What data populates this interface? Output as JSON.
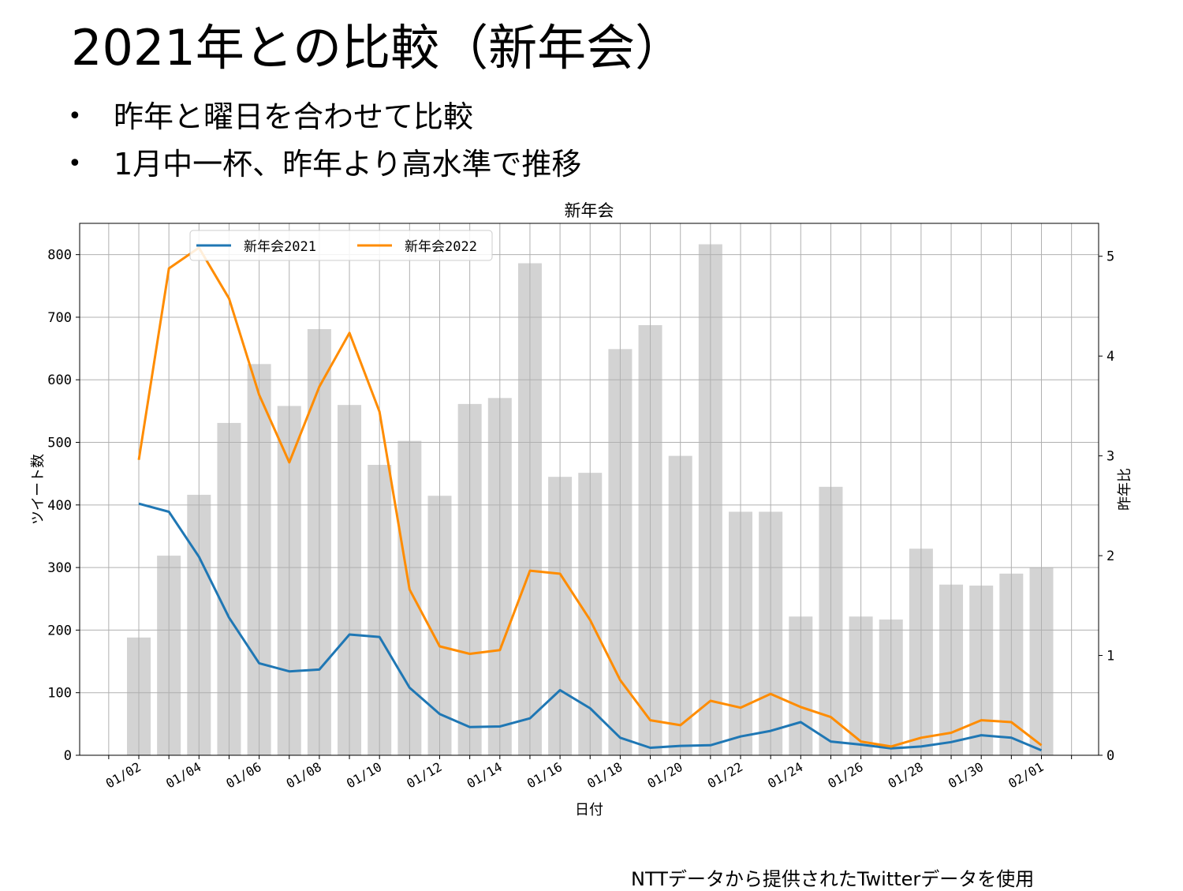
{
  "slide": {
    "title": "2021年との比較（新年会）",
    "bullets": [
      "昨年と曜日を合わせて比較",
      "1月中一杯、昨年より高水準で推移"
    ],
    "bullet_glyph": "•",
    "source_note": "NTTデータから提供されたTwitterデータを使用"
  },
  "chart_data": {
    "type": "bar",
    "title": "新年会",
    "xlabel": "日付",
    "ylabel": "ツイート数",
    "y2label": "昨年比",
    "ylim": [
      0,
      850
    ],
    "y2lim": [
      0,
      5.33
    ],
    "yticks": [
      0,
      100,
      200,
      300,
      400,
      500,
      600,
      700,
      800
    ],
    "y2ticks": [
      0,
      1,
      2,
      3,
      4,
      5
    ],
    "grid": true,
    "legend_position": "top-left",
    "categories": [
      "01/02",
      "01/03",
      "01/04",
      "01/05",
      "01/06",
      "01/07",
      "01/08",
      "01/09",
      "01/10",
      "01/11",
      "01/12",
      "01/13",
      "01/14",
      "01/15",
      "01/16",
      "01/17",
      "01/18",
      "01/19",
      "01/20",
      "01/21",
      "01/22",
      "01/23",
      "01/24",
      "01/25",
      "01/26",
      "01/27",
      "01/28",
      "01/29",
      "01/30",
      "01/31",
      "02/01"
    ],
    "xticklabels": [
      "01/02",
      "01/04",
      "01/06",
      "01/08",
      "01/10",
      "01/12",
      "01/14",
      "01/16",
      "01/18",
      "01/20",
      "01/22",
      "01/24",
      "01/26",
      "01/28",
      "01/30",
      "02/01"
    ],
    "bars": {
      "name": "昨年比",
      "axis": "right",
      "color": "#d3d3d3",
      "values": [
        1.18,
        2.0,
        2.61,
        3.33,
        3.92,
        3.5,
        4.27,
        3.51,
        2.91,
        3.15,
        2.6,
        3.52,
        3.58,
        4.93,
        2.79,
        2.83,
        4.07,
        4.31,
        3.0,
        5.12,
        2.44,
        2.44,
        1.39,
        2.69,
        1.39,
        1.36,
        2.07,
        1.71,
        1.7,
        1.82,
        1.88
      ]
    },
    "series": [
      {
        "name": "新年会2021",
        "axis": "left",
        "color": "#1f77b4",
        "values": [
          402,
          389,
          317,
          220,
          147,
          134,
          137,
          193,
          189,
          108,
          66,
          45,
          46,
          59,
          104,
          75,
          28,
          12,
          15,
          16,
          30,
          39,
          53,
          22,
          17,
          11,
          14,
          21,
          32,
          28,
          8
        ]
      },
      {
        "name": "新年会2022",
        "axis": "left",
        "color": "#ff8c00",
        "values": [
          472,
          778,
          811,
          730,
          576,
          468,
          589,
          675,
          549,
          265,
          174,
          162,
          168,
          295,
          290,
          216,
          120,
          56,
          48,
          87,
          76,
          98,
          77,
          61,
          22,
          14,
          28,
          36,
          56,
          53,
          16
        ]
      }
    ]
  }
}
